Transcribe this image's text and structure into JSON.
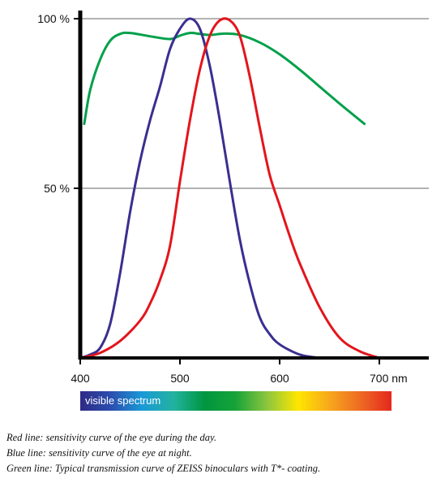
{
  "chart_data": {
    "type": "line",
    "y_ticks": [
      {
        "value": 50,
        "label": "50 %"
      },
      {
        "value": 100,
        "label": "100 %"
      }
    ],
    "x_ticks": [
      {
        "value": 400,
        "label": "400"
      },
      {
        "value": 500,
        "label": "500"
      },
      {
        "value": 600,
        "label": "600"
      },
      {
        "value": 700,
        "label": "700 nm"
      }
    ],
    "xlim": [
      400,
      745
    ],
    "ylim": [
      0,
      100
    ],
    "grid": "horizontal lines at 50 % and 100 %",
    "series": [
      {
        "key": "green",
        "color": "#00a04a",
        "points": [
          [
            404,
            69
          ],
          [
            410,
            79
          ],
          [
            420,
            88
          ],
          [
            430,
            93.5
          ],
          [
            440,
            95.5
          ],
          [
            450,
            95.8
          ],
          [
            470,
            94.8
          ],
          [
            490,
            94
          ],
          [
            500,
            95
          ],
          [
            510,
            95.8
          ],
          [
            520,
            95.5
          ],
          [
            530,
            95.2
          ],
          [
            545,
            95.6
          ],
          [
            560,
            95.2
          ],
          [
            580,
            93
          ],
          [
            600,
            89.5
          ],
          [
            620,
            85
          ],
          [
            640,
            80
          ],
          [
            660,
            75
          ],
          [
            685,
            69
          ]
        ]
      },
      {
        "key": "blue",
        "color": "#3a2f8f",
        "points": [
          [
            400,
            0
          ],
          [
            410,
            1
          ],
          [
            420,
            3
          ],
          [
            430,
            10
          ],
          [
            440,
            25
          ],
          [
            450,
            43
          ],
          [
            460,
            58
          ],
          [
            470,
            70
          ],
          [
            480,
            80
          ],
          [
            490,
            91
          ],
          [
            500,
            97
          ],
          [
            510,
            100
          ],
          [
            520,
            97
          ],
          [
            530,
            86
          ],
          [
            540,
            70
          ],
          [
            550,
            52
          ],
          [
            560,
            35
          ],
          [
            570,
            22
          ],
          [
            580,
            12
          ],
          [
            590,
            7
          ],
          [
            600,
            4
          ],
          [
            620,
            1
          ],
          [
            640,
            0
          ]
        ]
      },
      {
        "key": "red",
        "color": "#e3151c",
        "points": [
          [
            400,
            0
          ],
          [
            420,
            1.5
          ],
          [
            440,
            5
          ],
          [
            460,
            11
          ],
          [
            470,
            16
          ],
          [
            480,
            23
          ],
          [
            490,
            33
          ],
          [
            500,
            52
          ],
          [
            510,
            70
          ],
          [
            520,
            85
          ],
          [
            530,
            95
          ],
          [
            540,
            99.5
          ],
          [
            550,
            99.5
          ],
          [
            560,
            95
          ],
          [
            570,
            83
          ],
          [
            580,
            68
          ],
          [
            590,
            54
          ],
          [
            600,
            45
          ],
          [
            610,
            36
          ],
          [
            620,
            28
          ],
          [
            640,
            15
          ],
          [
            660,
            6
          ],
          [
            680,
            2
          ],
          [
            700,
            0
          ]
        ]
      }
    ],
    "spectrum_bar": {
      "label": "visible spectrum",
      "range": [
        400,
        700
      ],
      "colors": [
        "#2f2a86",
        "#2b4fb0",
        "#1a9ad6",
        "#23b2a0",
        "#00963f",
        "#18a339",
        "#8cc63f",
        "#ffe600",
        "#f7a81c",
        "#ee6a23",
        "#e4281e"
      ]
    },
    "captions": [
      "Red line: sensitivity curve of the eye during the day.",
      "Blue line: sensitivity curve of the eye at night.",
      "Green line: Typical transmission curve of ZEISS binoculars with T*- coating."
    ]
  }
}
